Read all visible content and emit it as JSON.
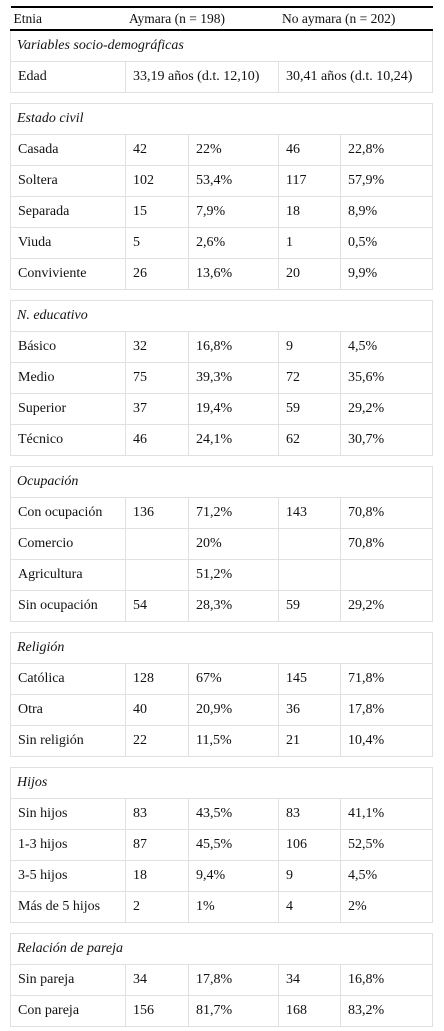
{
  "table": {
    "header": [
      "Etnia",
      "Aymara (n = 198)",
      "No aymara (n = 202)"
    ],
    "sections": [
      {
        "title": "Variables socio-demográficas",
        "rows": [
          {
            "label": "Edad",
            "cells": [
              "33,19 años (d.t. 12,10)",
              "30,41 años (d.t. 10,24)"
            ]
          }
        ]
      },
      {
        "title": "Estado civil",
        "rows": [
          {
            "label": "Casada",
            "cells": [
              "42",
              "22%",
              "46",
              "22,8%"
            ]
          },
          {
            "label": "Soltera",
            "cells": [
              "102",
              "53,4%",
              "117",
              "57,9%"
            ]
          },
          {
            "label": "Separada",
            "cells": [
              "15",
              "7,9%",
              "18",
              "8,9%"
            ]
          },
          {
            "label": "Viuda",
            "cells": [
              "5",
              "2,6%",
              "1",
              "0,5%"
            ]
          },
          {
            "label": "Conviviente",
            "cells": [
              "26",
              "13,6%",
              "20",
              "9,9%"
            ]
          }
        ]
      },
      {
        "title": "N. educativo",
        "rows": [
          {
            "label": "Básico",
            "cells": [
              "32",
              "16,8%",
              "9",
              "4,5%"
            ]
          },
          {
            "label": "Medio",
            "cells": [
              "75",
              "39,3%",
              "72",
              "35,6%"
            ]
          },
          {
            "label": "Superior",
            "cells": [
              "37",
              "19,4%",
              "59",
              "29,2%"
            ]
          },
          {
            "label": "Técnico",
            "cells": [
              "46",
              "24,1%",
              "62",
              "30,7%"
            ]
          }
        ]
      },
      {
        "title": "Ocupación",
        "rows": [
          {
            "label": "Con ocupación",
            "cells": [
              "136",
              "71,2%",
              "143",
              "70,8%"
            ]
          },
          {
            "label": "Comercio",
            "cells": [
              null,
              "20%",
              null,
              "70,8%"
            ]
          },
          {
            "label": "Agricultura",
            "cells": [
              null,
              "51,2%",
              null,
              null
            ]
          },
          {
            "label": "Sin ocupación",
            "cells": [
              "54",
              "28,3%",
              "59",
              "29,2%"
            ]
          }
        ]
      },
      {
        "title": "Religión",
        "rows": [
          {
            "label": "Católica",
            "cells": [
              "128",
              "67%",
              "145",
              "71,8%"
            ]
          },
          {
            "label": "Otra",
            "cells": [
              "40",
              "20,9%",
              "36",
              "17,8%"
            ]
          },
          {
            "label": "Sin religión",
            "cells": [
              "22",
              "11,5%",
              "21",
              "10,4%"
            ]
          }
        ]
      },
      {
        "title": "Hijos",
        "rows": [
          {
            "label": "Sin hijos",
            "cells": [
              "83",
              "43,5%",
              "83",
              "41,1%"
            ]
          },
          {
            "label": "1-3 hijos",
            "cells": [
              "87",
              "45,5%",
              "106",
              "52,5%"
            ]
          },
          {
            "label": "3-5 hijos",
            "cells": [
              "18",
              "9,4%",
              "9",
              "4,5%"
            ]
          },
          {
            "label": "Más de 5 hijos",
            "cells": [
              "2",
              "1%",
              "4",
              "2%"
            ]
          }
        ]
      },
      {
        "title": "Relación de pareja",
        "rows": [
          {
            "label": "Sin pareja",
            "cells": [
              "34",
              "17,8%",
              "34",
              "16,8%"
            ]
          },
          {
            "label": "Con pareja",
            "cells": [
              "156",
              "81,7%",
              "168",
              "83,2%"
            ]
          }
        ]
      }
    ]
  }
}
